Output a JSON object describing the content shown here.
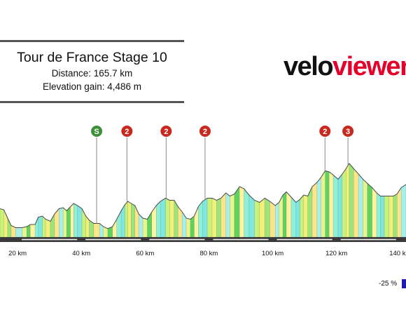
{
  "info": {
    "title": "Tour de France Stage 10",
    "distance": "Distance: 165.7 km",
    "elevation": "Elevation gain: 4,486 m"
  },
  "logo": {
    "part1": "velo",
    "part2": "viewer"
  },
  "legend": {
    "label": "-25 %",
    "color": "#1c1cb0"
  },
  "chart_data": {
    "type": "area",
    "title": "",
    "xlabel": "",
    "ylabel": "",
    "x_unit": "km",
    "x_ticks": [
      20,
      40,
      60,
      80,
      100,
      120,
      140
    ],
    "x_tick_labels": [
      "20 km",
      "40 km",
      "60 km",
      "80 km",
      "100 km",
      "120 km",
      "140 km"
    ],
    "xlim": [
      14.5,
      141.8
    ],
    "ylim": [
      0,
      1
    ],
    "markers": [
      {
        "label": "S",
        "km": 44.8,
        "color": "#3e8f3a"
      },
      {
        "label": "2",
        "km": 54.3,
        "color": "#c8281e"
      },
      {
        "label": "2",
        "km": 66.6,
        "color": "#c8281e"
      },
      {
        "label": "2",
        "km": 78.8,
        "color": "#c8281e"
      },
      {
        "label": "2",
        "km": 116.4,
        "color": "#c8281e"
      },
      {
        "label": "3",
        "km": 123.6,
        "color": "#c8281e"
      }
    ],
    "profile": [
      [
        14.5,
        0.27
      ],
      [
        15.7,
        0.26
      ],
      [
        16.9,
        0.18
      ],
      [
        18.0,
        0.11
      ],
      [
        19.4,
        0.09
      ],
      [
        21.5,
        0.09
      ],
      [
        22.9,
        0.1
      ],
      [
        24.0,
        0.12
      ],
      [
        25.5,
        0.12
      ],
      [
        26.5,
        0.19
      ],
      [
        27.8,
        0.2
      ],
      [
        28.8,
        0.17
      ],
      [
        30.3,
        0.15
      ],
      [
        31.6,
        0.22
      ],
      [
        33.0,
        0.27
      ],
      [
        34.3,
        0.28
      ],
      [
        35.4,
        0.25
      ],
      [
        36.6,
        0.29
      ],
      [
        37.6,
        0.32
      ],
      [
        38.8,
        0.3
      ],
      [
        40.2,
        0.27
      ],
      [
        41.4,
        0.2
      ],
      [
        42.5,
        0.16
      ],
      [
        43.9,
        0.13
      ],
      [
        45.7,
        0.13
      ],
      [
        46.9,
        0.1
      ],
      [
        48.3,
        0.08
      ],
      [
        49.8,
        0.1
      ],
      [
        51.1,
        0.17
      ],
      [
        52.5,
        0.25
      ],
      [
        53.7,
        0.31
      ],
      [
        54.6,
        0.34
      ],
      [
        55.6,
        0.32
      ],
      [
        56.8,
        0.3
      ],
      [
        58.0,
        0.22
      ],
      [
        59.3,
        0.18
      ],
      [
        60.7,
        0.17
      ],
      [
        62.1,
        0.24
      ],
      [
        63.5,
        0.3
      ],
      [
        64.8,
        0.34
      ],
      [
        66.4,
        0.37
      ],
      [
        67.7,
        0.35
      ],
      [
        69.1,
        0.35
      ],
      [
        70.3,
        0.29
      ],
      [
        71.6,
        0.24
      ],
      [
        72.9,
        0.18
      ],
      [
        74.2,
        0.17
      ],
      [
        75.4,
        0.2
      ],
      [
        76.7,
        0.29
      ],
      [
        78.0,
        0.34
      ],
      [
        79.5,
        0.37
      ],
      [
        81.0,
        0.37
      ],
      [
        82.4,
        0.35
      ],
      [
        83.8,
        0.37
      ],
      [
        85.3,
        0.42
      ],
      [
        86.6,
        0.39
      ],
      [
        88.0,
        0.41
      ],
      [
        89.6,
        0.48
      ],
      [
        91.0,
        0.46
      ],
      [
        92.6,
        0.4
      ],
      [
        94.3,
        0.35
      ],
      [
        95.9,
        0.33
      ],
      [
        97.5,
        0.37
      ],
      [
        99.1,
        0.34
      ],
      [
        100.8,
        0.3
      ],
      [
        102.0,
        0.33
      ],
      [
        103.2,
        0.4
      ],
      [
        104.3,
        0.43
      ],
      [
        105.8,
        0.38
      ],
      [
        107.3,
        0.33
      ],
      [
        108.6,
        0.36
      ],
      [
        109.7,
        0.4
      ],
      [
        111.0,
        0.39
      ],
      [
        112.4,
        0.48
      ],
      [
        113.9,
        0.52
      ],
      [
        115.2,
        0.57
      ],
      [
        116.5,
        0.63
      ],
      [
        117.7,
        0.62
      ],
      [
        119.0,
        0.59
      ],
      [
        120.5,
        0.55
      ],
      [
        121.8,
        0.6
      ],
      [
        123.0,
        0.65
      ],
      [
        124.0,
        0.7
      ],
      [
        125.4,
        0.65
      ],
      [
        126.9,
        0.6
      ],
      [
        128.3,
        0.55
      ],
      [
        129.7,
        0.51
      ],
      [
        131.2,
        0.47
      ],
      [
        132.6,
        0.42
      ],
      [
        133.8,
        0.39
      ],
      [
        135.0,
        0.39
      ],
      [
        136.5,
        0.39
      ],
      [
        137.8,
        0.39
      ],
      [
        139.0,
        0.41
      ],
      [
        140.3,
        0.47
      ],
      [
        141.8,
        0.5
      ]
    ]
  }
}
